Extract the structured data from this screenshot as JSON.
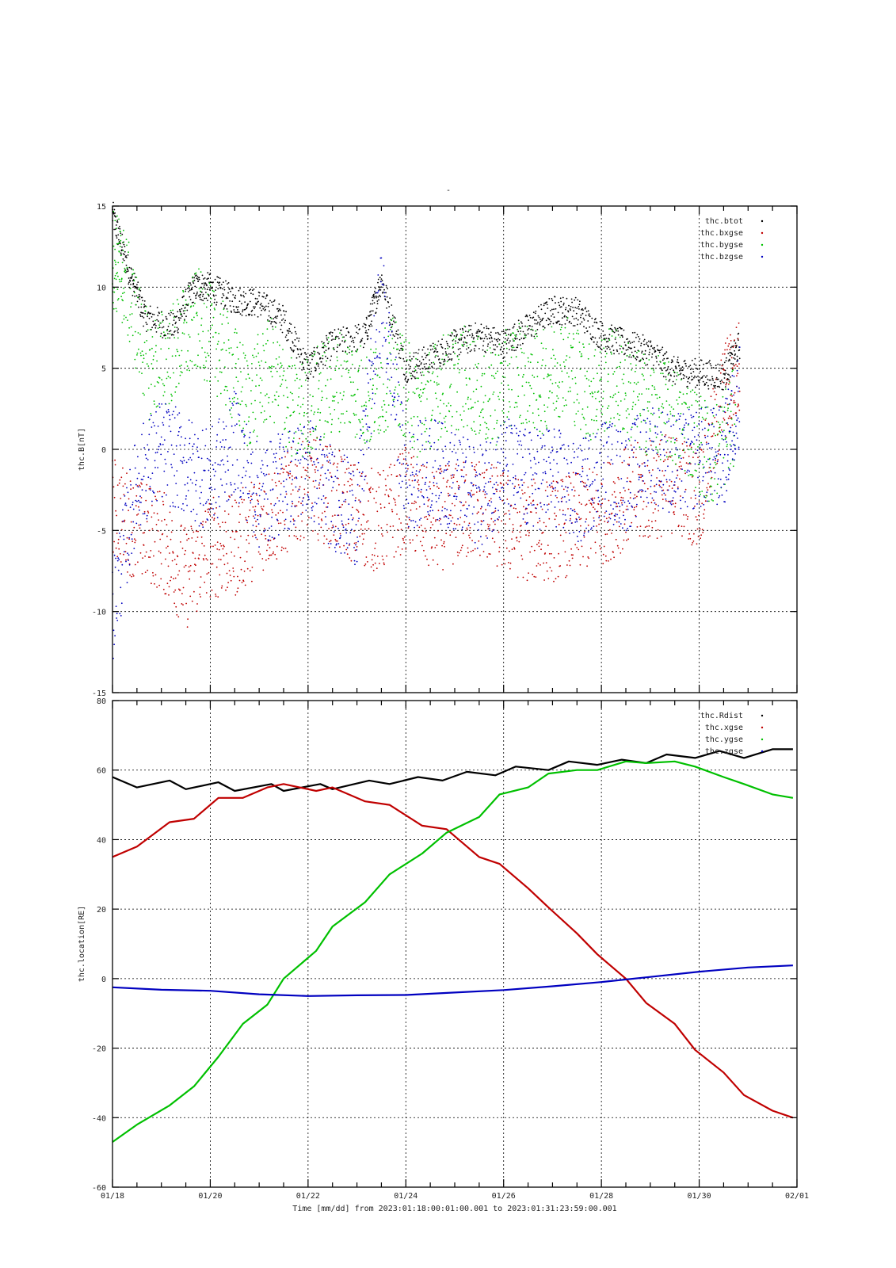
{
  "page": {
    "title_mark": "-",
    "xlabel": "Time [mm/dd]  from 2023:01:18:00:01:00.001  to  2023:01:31:23:59:00.001"
  },
  "chart_data": [
    {
      "type": "scatter",
      "title": "",
      "ylabel": "thc.B[nT]",
      "xlabel": "",
      "ylim": [
        -15,
        15
      ],
      "yticks": [
        15,
        10,
        5,
        0,
        -5,
        -10,
        -15
      ],
      "xlim": [
        "01/18",
        "02/01"
      ],
      "xticks": [
        "01/18",
        "01/20",
        "01/22",
        "01/24",
        "01/26",
        "01/28",
        "01/30",
        "02/01"
      ],
      "grid": true,
      "legend_position": "top-right",
      "series": [
        {
          "name": "thc.btot",
          "color": "#000000",
          "x": [
            "01/18 00:00",
            "01/18 08:00",
            "01/18 16:00",
            "01/19 06:00",
            "01/19 16:00",
            "01/20 00:00",
            "01/20 12:00",
            "01/21 00:00",
            "01/21 12:00",
            "01/22 00:00",
            "01/22 12:00",
            "01/23 04:00",
            "01/23 12:00",
            "01/24 00:00",
            "01/24 12:00",
            "01/25 00:00",
            "01/25 12:00",
            "01/26 00:00",
            "01/26 12:00",
            "01/27 00:00",
            "01/27 12:00",
            "01/28 00:00",
            "01/28 12:00",
            "01/29 00:00",
            "01/29 12:00",
            "01/30 00:00",
            "01/30 12:00",
            "01/30 20:00"
          ],
          "values": [
            14.5,
            11.0,
            8.2,
            7.5,
            10.0,
            10.0,
            9.2,
            9.0,
            8.0,
            5.0,
            6.5,
            7.0,
            10.5,
            5.0,
            5.6,
            6.5,
            7.0,
            6.5,
            7.5,
            8.6,
            8.5,
            7.0,
            6.5,
            6.0,
            4.8,
            4.7,
            4.5,
            6.5
          ]
        },
        {
          "name": "thc.bxgse",
          "color": "#c00000",
          "x": [
            "01/18 00:00",
            "01/18 12:00",
            "01/19 00:00",
            "01/19 12:00",
            "01/20 00:00",
            "01/20 12:00",
            "01/21 00:00",
            "01/21 12:00",
            "01/22 00:00",
            "01/22 12:00",
            "01/23 00:00",
            "01/23 12:00",
            "01/24 00:00",
            "01/24 12:00",
            "01/25 00:00",
            "01/25 12:00",
            "01/26 00:00",
            "01/26 12:00",
            "01/27 00:00",
            "01/27 12:00",
            "01/28 00:00",
            "01/28 12:00",
            "01/29 00:00",
            "01/29 12:00",
            "01/30 00:00",
            "01/30 12:00",
            "01/30 20:00"
          ],
          "values": [
            -3.5,
            -5.0,
            -5.5,
            -8.0,
            -6.0,
            -6.0,
            -4.5,
            -3.5,
            -2.0,
            -3.0,
            -4.0,
            -4.5,
            -3.0,
            -4.5,
            -4.0,
            -3.5,
            -4.5,
            -5.0,
            -5.0,
            -4.5,
            -4.0,
            -3.0,
            -2.5,
            -2.0,
            -3.0,
            3.5,
            5.0
          ]
        },
        {
          "name": "thc.bygse",
          "color": "#00c000",
          "x": [
            "01/18 00:00",
            "01/18 06:00",
            "01/18 18:00",
            "01/19 06:00",
            "01/19 18:00",
            "01/20 06:00",
            "01/20 18:00",
            "01/21 06:00",
            "01/21 18:00",
            "01/22 06:00",
            "01/22 18:00",
            "01/23 06:00",
            "01/23 18:00",
            "01/24 06:00",
            "01/24 18:00",
            "01/25 06:00",
            "01/25 18:00",
            "01/26 06:00",
            "01/26 18:00",
            "01/27 06:00",
            "01/27 18:00",
            "01/28 06:00",
            "01/28 18:00",
            "01/29 06:00",
            "01/29 18:00",
            "01/30 06:00",
            "01/30 18:00"
          ],
          "values": [
            12.0,
            10.5,
            5.0,
            6.0,
            8.0,
            6.0,
            3.0,
            5.0,
            2.0,
            3.5,
            4.5,
            3.0,
            5.0,
            2.5,
            4.0,
            4.5,
            3.0,
            5.0,
            4.0,
            5.5,
            3.5,
            4.5,
            3.0,
            2.5,
            1.5,
            -0.5,
            2.0
          ]
        },
        {
          "name": "thc.bzgse",
          "color": "#0000c0",
          "x": [
            "01/18 00:00",
            "01/18 12:00",
            "01/19 00:00",
            "01/19 12:00",
            "01/20 00:00",
            "01/20 12:00",
            "01/21 00:00",
            "01/21 12:00",
            "01/22 00:00",
            "01/22 12:00",
            "01/23 00:00",
            "01/23 12:00",
            "01/24 00:00",
            "01/24 12:00",
            "01/25 00:00",
            "01/25 12:00",
            "01/26 00:00",
            "01/26 12:00",
            "01/27 00:00",
            "01/27 12:00",
            "01/28 00:00",
            "01/28 12:00",
            "01/29 00:00",
            "01/29 12:00",
            "01/30 00:00",
            "01/30 12:00",
            "01/30 20:00"
          ],
          "values": [
            -10.0,
            -2.0,
            0.0,
            -1.0,
            -2.0,
            0.5,
            -3.0,
            -2.0,
            -1.0,
            -3.0,
            -4.0,
            9.5,
            -2.0,
            -1.0,
            -2.0,
            -3.0,
            -1.0,
            -2.0,
            -1.5,
            -3.0,
            -1.0,
            -2.0,
            0.0,
            -1.0,
            -0.5,
            -0.5,
            3.5
          ]
        }
      ]
    },
    {
      "type": "line",
      "title": "",
      "ylabel": "thc.location[RE]",
      "xlabel": "Time [mm/dd]  from 2023:01:18:00:01:00.001  to  2023:01:31:23:59:00.001",
      "ylim": [
        -60,
        80
      ],
      "yticks": [
        80,
        60,
        40,
        20,
        0,
        -20,
        -40,
        -60
      ],
      "xlim": [
        "01/18",
        "02/01"
      ],
      "xticks": [
        "01/18",
        "01/20",
        "01/22",
        "01/24",
        "01/26",
        "01/28",
        "01/30",
        "02/01"
      ],
      "grid": true,
      "legend_position": "top-right",
      "series": [
        {
          "name": "thc.Rdist",
          "color": "#000000",
          "x": [
            "01/18 00:00",
            "01/18 12:00",
            "01/19 04:00",
            "01/19 12:00",
            "01/20 04:00",
            "01/20 12:00",
            "01/21 06:00",
            "01/21 12:00",
            "01/22 06:00",
            "01/22 12:00",
            "01/23 06:00",
            "01/23 16:00",
            "01/24 06:00",
            "01/24 18:00",
            "01/25 06:00",
            "01/25 20:00",
            "01/26 06:00",
            "01/26 22:00",
            "01/27 08:00",
            "01/27 22:00",
            "01/28 10:00",
            "01/28 22:00",
            "01/29 08:00",
            "01/29 22:00",
            "01/30 10:00",
            "01/30 22:00",
            "01/31 12:00",
            "01/31 22:00"
          ],
          "values": [
            58,
            55,
            57,
            54.5,
            56.5,
            54,
            56,
            54,
            56,
            54.5,
            57,
            56,
            58,
            57,
            59.5,
            58.5,
            61,
            60,
            62.5,
            61.5,
            63,
            62,
            64.5,
            63.5,
            65.5,
            63.5,
            66,
            66
          ]
        },
        {
          "name": "thc.xgse",
          "color": "#c00000",
          "x": [
            "01/18 00:00",
            "01/18 12:00",
            "01/19 04:00",
            "01/19 16:00",
            "01/20 04:00",
            "01/20 16:00",
            "01/21 04:00",
            "01/21 12:00",
            "01/22 04:00",
            "01/22 12:00",
            "01/23 04:00",
            "01/23 16:00",
            "01/24 08:00",
            "01/24 20:00",
            "01/25 12:00",
            "01/25 22:00",
            "01/26 12:00",
            "01/26 22:00",
            "01/27 12:00",
            "01/27 22:00",
            "01/28 12:00",
            "01/28 22:00",
            "01/29 12:00",
            "01/29 22:00",
            "01/30 12:00",
            "01/30 22:00",
            "01/31 12:00",
            "01/31 22:00"
          ],
          "values": [
            35,
            38,
            45,
            46,
            52,
            52,
            55,
            56,
            54,
            55,
            51,
            50,
            44,
            43,
            35,
            33,
            26,
            20.5,
            13,
            7,
            0,
            -7,
            -13,
            -20.5,
            -27,
            -33.5,
            -38,
            -40
          ]
        },
        {
          "name": "thc.ygse",
          "color": "#00c000",
          "x": [
            "01/18 00:00",
            "01/18 12:00",
            "01/19 04:00",
            "01/19 16:00",
            "01/20 04:00",
            "01/20 16:00",
            "01/21 04:00",
            "01/21 12:00",
            "01/22 04:00",
            "01/22 12:00",
            "01/23 04:00",
            "01/23 16:00",
            "01/24 08:00",
            "01/24 20:00",
            "01/25 12:00",
            "01/25 22:00",
            "01/26 12:00",
            "01/26 22:00",
            "01/27 12:00",
            "01/27 22:00",
            "01/28 12:00",
            "01/28 22:00",
            "01/29 12:00",
            "01/29 22:00",
            "01/30 12:00",
            "01/30 22:00",
            "01/31 12:00",
            "01/31 22:00"
          ],
          "values": [
            -47,
            -42,
            -36.5,
            -31,
            -22.5,
            -13,
            -7.5,
            0,
            8,
            15,
            22,
            30,
            36,
            42,
            46.5,
            53,
            55,
            59,
            60,
            60,
            62.5,
            62,
            62.5,
            61,
            58,
            56,
            53,
            52
          ]
        },
        {
          "name": "thc.zgse",
          "color": "#0000c0",
          "x": [
            "01/18 00:00",
            "01/19 00:00",
            "01/20 00:00",
            "01/21 00:00",
            "01/22 00:00",
            "01/23 00:00",
            "01/24 00:00",
            "01/25 00:00",
            "01/26 00:00",
            "01/27 00:00",
            "01/28 00:00",
            "01/29 00:00",
            "01/30 00:00",
            "01/31 00:00",
            "01/31 22:00"
          ],
          "values": [
            -2.5,
            -3.2,
            -3.5,
            -4.5,
            -5,
            -4.8,
            -4.7,
            -4,
            -3.3,
            -2.2,
            -1,
            0.5,
            2,
            3.2,
            3.8
          ]
        }
      ]
    }
  ]
}
